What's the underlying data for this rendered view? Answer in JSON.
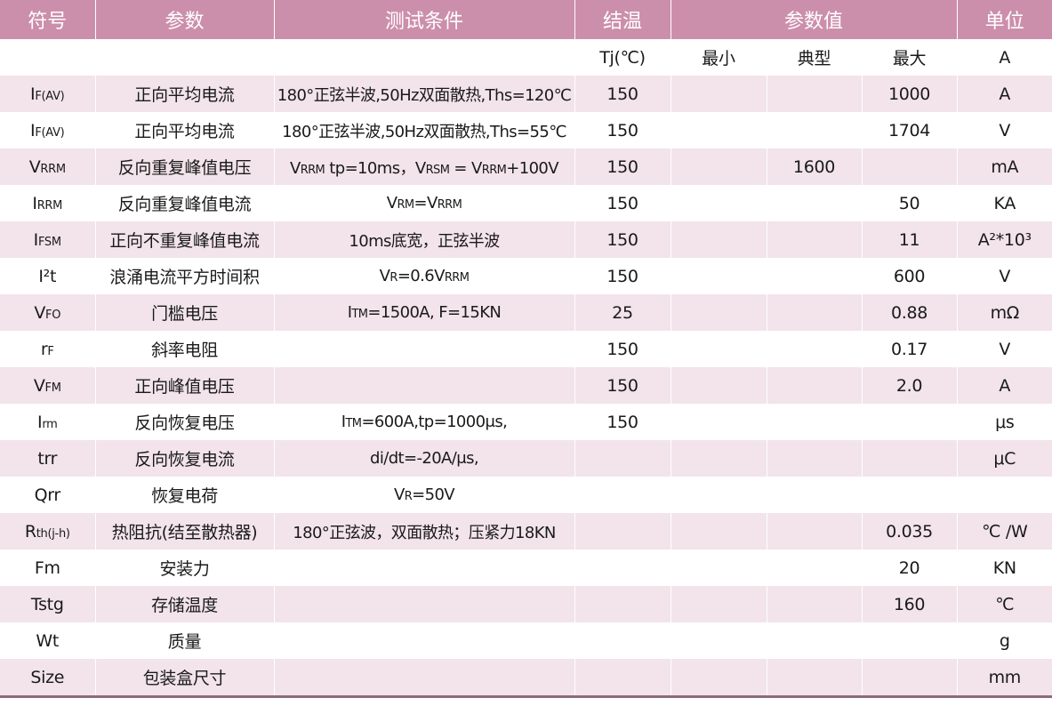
{
  "headers": {
    "symbol": "符号",
    "param": "参数",
    "conditions": "测试条件",
    "junction_temp": "结温",
    "param_value": "参数值",
    "unit": "单位"
  },
  "subheader": {
    "tj": "Tj(℃)",
    "min": "最小",
    "typ": "典型",
    "max": "最大",
    "unit": "A"
  },
  "rows": [
    {
      "sym_main": "I",
      "sym_sub": "F(AV)",
      "param": "正向平均电流",
      "cond": "180°正弦半波,50Hz双面散热,Ths=120℃",
      "tj": "150",
      "min": "",
      "typ": "",
      "max": "1000",
      "unit": "A"
    },
    {
      "sym_main": "I",
      "sym_sub": "F(AV)",
      "param": "正向平均电流",
      "cond": "180°正弦半波,50Hz双面散热,Ths=55℃",
      "tj": "150",
      "min": "",
      "typ": "",
      "max": "1704",
      "unit": "V"
    },
    {
      "sym_main": "V",
      "sym_sub": "RRM",
      "param": "反向重复峰值电压",
      "cond_parts": [
        "V",
        "RRM",
        " tp=10ms，",
        "V",
        "RSM",
        " = ",
        "V",
        "RRM",
        "+100V"
      ],
      "tj": "150",
      "min": "",
      "typ": "1600",
      "max": "",
      "unit": "mA"
    },
    {
      "sym_main": "I",
      "sym_sub": "RRM",
      "param": "反向重复峰值电流",
      "cond_parts": [
        "V",
        "RM",
        "=",
        "V",
        "RRM"
      ],
      "tj": "150",
      "min": "",
      "typ": "",
      "max": "50",
      "unit": "KA"
    },
    {
      "sym_main": "I",
      "sym_sub": "FSM",
      "param": "正向不重复峰值电流",
      "cond": "10ms底宽，正弦半波",
      "tj": "150",
      "min": "",
      "typ": "",
      "max": "11",
      "unit": "A²*10³"
    },
    {
      "sym_main": "I²t",
      "sym_sub": "",
      "param": "浪涌电流平方时间积",
      "cond_parts": [
        "V",
        "R",
        "=0.6",
        "V",
        "RRM"
      ],
      "tj": "150",
      "min": "",
      "typ": "",
      "max": "600",
      "unit": "V"
    },
    {
      "sym_main": "V",
      "sym_sub": "FO",
      "param": "门槛电压",
      "cond_parts": [
        "I",
        "TM",
        "=1500A, F=15KN"
      ],
      "tj": "25",
      "min": "",
      "typ": "",
      "max": "0.88",
      "unit": "mΩ"
    },
    {
      "sym_main": "r",
      "sym_sub": "F",
      "param": "斜率电阻",
      "cond": "",
      "tj": "150",
      "min": "",
      "typ": "",
      "max": "0.17",
      "unit": "V"
    },
    {
      "sym_main": "V",
      "sym_sub": "FM",
      "param": "正向峰值电压",
      "cond": "",
      "tj": "150",
      "min": "",
      "typ": "",
      "max": "2.0",
      "unit": "A"
    },
    {
      "sym_main": "I",
      "sym_sub": "rm",
      "param": "反向恢复电压",
      "cond_parts": [
        "I",
        "TM",
        "=600A,tp=1000μs,"
      ],
      "tj": "150",
      "min": "",
      "typ": "",
      "max": "",
      "unit": "μs"
    },
    {
      "sym_main": "trr",
      "sym_sub": "",
      "param": "反向恢复电流",
      "cond": "di/dt=-20A/μs,",
      "tj": "",
      "min": "",
      "typ": "",
      "max": "",
      "unit": "μC"
    },
    {
      "sym_main": "Qrr",
      "sym_sub": "",
      "param": "恢复电荷",
      "cond_parts": [
        "V",
        "R",
        "=50V"
      ],
      "tj": "",
      "min": "",
      "typ": "",
      "max": "",
      "unit": ""
    },
    {
      "sym_main": "R",
      "sym_sub": "th(j-h)",
      "param": "热阻抗(结至散热器)",
      "cond": "180°正弦波，双面散热；压紧力18KN",
      "tj": "",
      "min": "",
      "typ": "",
      "max": "0.035",
      "unit": "℃ /W"
    },
    {
      "sym_main": "Fm",
      "sym_sub": "",
      "param": "安装力",
      "cond": "",
      "tj": "",
      "min": "",
      "typ": "",
      "max": "20",
      "unit": "KN"
    },
    {
      "sym_main": "Tstg",
      "sym_sub": "",
      "param": "存储温度",
      "cond": "",
      "tj": "",
      "min": "",
      "typ": "",
      "max": "160",
      "unit": "℃"
    },
    {
      "sym_main": "Wt",
      "sym_sub": "",
      "param": "质量",
      "cond": "",
      "tj": "",
      "min": "",
      "typ": "",
      "max": "",
      "unit": "g"
    },
    {
      "sym_main": "Size",
      "sym_sub": "",
      "param": "包装盒尺寸",
      "cond": "",
      "tj": "",
      "min": "",
      "typ": "",
      "max": "",
      "unit": "mm"
    }
  ],
  "colors": {
    "header_bg": "#cc8fab",
    "stripe_bg": "#f2e4ea",
    "bottom_rule": "#8c6b79"
  }
}
